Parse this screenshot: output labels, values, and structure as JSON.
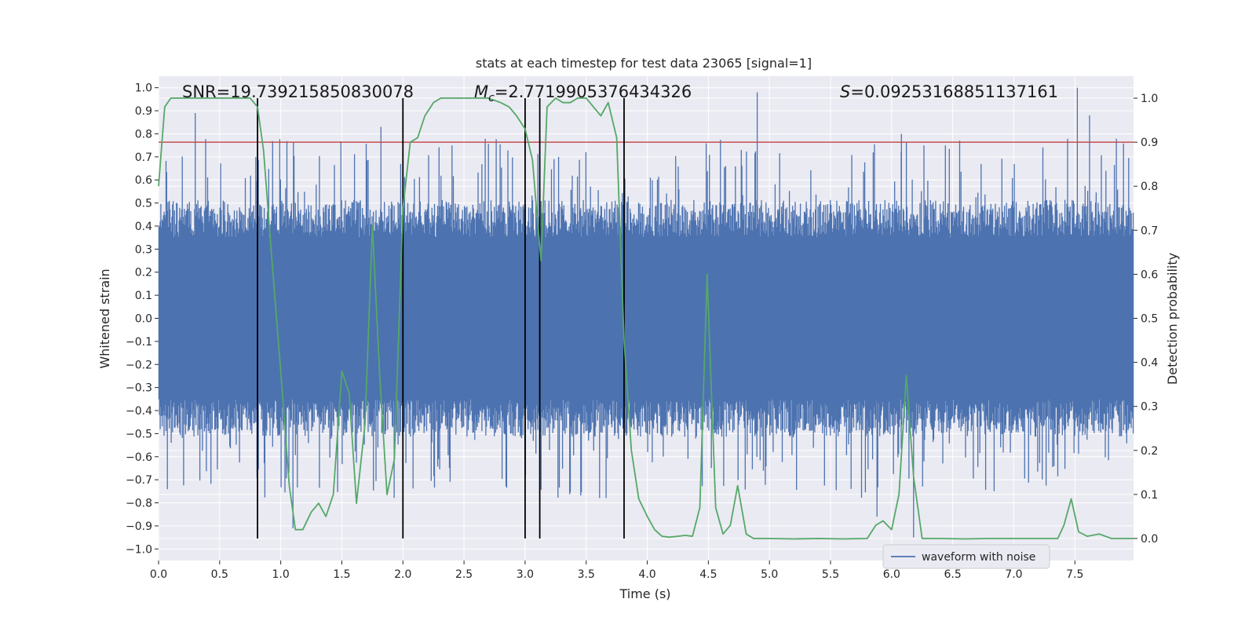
{
  "chart_data": {
    "type": "line",
    "title": "stats at each timestep for test data 23065 [signal=1]",
    "xlabel": "Time (s)",
    "ylabel_left": "Whitened strain",
    "ylabel_right": "Detection probability",
    "xlim": [
      0.0,
      7.98
    ],
    "ylim_left": [
      -1.05,
      1.05
    ],
    "ylim_right": [
      -0.05,
      1.05
    ],
    "x_ticks": [
      "0.0",
      "0.5",
      "1.0",
      "1.5",
      "2.0",
      "2.5",
      "3.0",
      "3.5",
      "4.0",
      "4.5",
      "5.0",
      "5.5",
      "6.0",
      "6.5",
      "7.0",
      "7.5"
    ],
    "y_left_ticks": [
      "1.0",
      "0.9",
      "0.8",
      "0.7",
      "0.6",
      "0.5",
      "0.4",
      "0.3",
      "0.2",
      "0.1",
      "0.0",
      "-0.1",
      "-0.2",
      "-0.3",
      "-0.4",
      "-0.5",
      "-0.6",
      "-0.7",
      "-0.8",
      "-0.9",
      "-1.0"
    ],
    "y_right_ticks": [
      "1.0",
      "0.9",
      "0.8",
      "0.7",
      "0.6",
      "0.5",
      "0.4",
      "0.3",
      "0.2",
      "0.1",
      "0.0"
    ],
    "grid": true,
    "annotations": {
      "snr": "SNR=19.739215850830078",
      "mc_prefix": "M",
      "mc_sub": "c",
      "mc_value": "=2.7719905376434326",
      "s_prefix": "S",
      "s_value": "=0.09253168851137161"
    },
    "legend": {
      "position": "lower-center-right",
      "entries": [
        "waveform with noise"
      ]
    },
    "threshold": 0.9,
    "vertical_lines_x": [
      0.81,
      2.0,
      3.0,
      3.12,
      3.81
    ],
    "series": [
      {
        "name": "waveform with noise",
        "kind": "noise-strain",
        "axis": "left",
        "color": "#4c72b0",
        "envelope_typical": 0.45,
        "peaks": [
          {
            "x": 0.3,
            "y": 0.89
          },
          {
            "x": 1.82,
            "y": 0.83
          },
          {
            "x": 4.9,
            "y": 0.98
          },
          {
            "x": 6.08,
            "y": 0.8
          },
          {
            "x": 7.52,
            "y": 1.0
          },
          {
            "x": 7.62,
            "y": 0.88
          },
          {
            "x": 6.18,
            "y": -0.95
          },
          {
            "x": 1.1,
            "y": -0.91
          },
          {
            "x": 5.88,
            "y": -0.86
          }
        ]
      },
      {
        "kind": "probability",
        "axis": "right",
        "color": "#55a868",
        "x": [
          0.0,
          0.05,
          0.1,
          0.2,
          0.3,
          0.4,
          0.5,
          0.6,
          0.7,
          0.75,
          0.81,
          0.86,
          0.92,
          1.0,
          1.07,
          1.12,
          1.18,
          1.25,
          1.31,
          1.37,
          1.43,
          1.5,
          1.56,
          1.62,
          1.69,
          1.75,
          1.81,
          1.87,
          1.93,
          2.0,
          2.06,
          2.12,
          2.18,
          2.25,
          2.31,
          2.4,
          2.5,
          2.6,
          2.7,
          2.8,
          2.87,
          2.93,
          3.0,
          3.06,
          3.09,
          3.13,
          3.18,
          3.25,
          3.31,
          3.37,
          3.43,
          3.5,
          3.56,
          3.62,
          3.68,
          3.75,
          3.81,
          3.87,
          3.93,
          4.0,
          4.06,
          4.12,
          4.18,
          4.25,
          4.31,
          4.37,
          4.43,
          4.49,
          4.56,
          4.62,
          4.68,
          4.74,
          4.81,
          4.87,
          4.93,
          5.0,
          5.2,
          5.4,
          5.6,
          5.8,
          5.87,
          5.93,
          6.0,
          6.06,
          6.12,
          6.18,
          6.25,
          6.4,
          6.6,
          6.8,
          7.0,
          7.2,
          7.36,
          7.41,
          7.47,
          7.53,
          7.6,
          7.7,
          7.8,
          7.98
        ],
        "values": [
          0.8,
          0.98,
          1.0,
          1.0,
          1.0,
          1.0,
          1.0,
          1.0,
          1.0,
          1.0,
          0.98,
          0.88,
          0.66,
          0.38,
          0.12,
          0.02,
          0.02,
          0.06,
          0.08,
          0.05,
          0.1,
          0.38,
          0.33,
          0.08,
          0.26,
          0.71,
          0.37,
          0.1,
          0.18,
          0.75,
          0.9,
          0.91,
          0.96,
          0.99,
          1.0,
          1.0,
          1.0,
          1.0,
          1.0,
          0.99,
          0.98,
          0.96,
          0.93,
          0.86,
          0.76,
          0.63,
          0.98,
          1.0,
          0.99,
          0.99,
          1.0,
          1.0,
          0.98,
          0.96,
          0.99,
          0.91,
          0.45,
          0.2,
          0.09,
          0.05,
          0.02,
          0.005,
          0.003,
          0.005,
          0.007,
          0.005,
          0.07,
          0.6,
          0.07,
          0.01,
          0.03,
          0.12,
          0.01,
          0.0,
          0.0,
          0.0,
          -0.001,
          0.0,
          -0.001,
          0.0,
          0.03,
          0.04,
          0.02,
          0.1,
          0.37,
          0.14,
          0.0,
          0.0,
          -0.001,
          0.0,
          0.0,
          0.0,
          0.0,
          0.03,
          0.09,
          0.015,
          0.005,
          0.01,
          0.0,
          0.0
        ]
      }
    ]
  }
}
